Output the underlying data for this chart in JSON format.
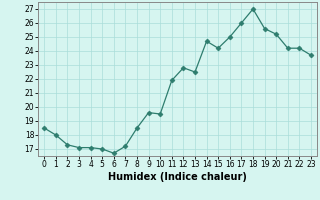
{
  "x": [
    0,
    1,
    2,
    3,
    4,
    5,
    6,
    7,
    8,
    9,
    10,
    11,
    12,
    13,
    14,
    15,
    16,
    17,
    18,
    19,
    20,
    21,
    22,
    23
  ],
  "y": [
    18.5,
    18.0,
    17.3,
    17.1,
    17.1,
    17.0,
    16.7,
    17.2,
    18.5,
    19.6,
    19.5,
    21.9,
    22.8,
    22.5,
    24.7,
    24.2,
    25.0,
    26.0,
    27.0,
    25.6,
    25.2,
    24.2,
    24.2,
    23.7
  ],
  "line_color": "#2e7d6e",
  "marker": "D",
  "marker_size": 2.5,
  "bg_color": "#d6f5f0",
  "grid_color": "#aaddda",
  "xlabel": "Humidex (Indice chaleur)",
  "xlim": [
    -0.5,
    23.5
  ],
  "ylim": [
    16.5,
    27.5
  ],
  "yticks": [
    17,
    18,
    19,
    20,
    21,
    22,
    23,
    24,
    25,
    26,
    27
  ],
  "xticks": [
    0,
    1,
    2,
    3,
    4,
    5,
    6,
    7,
    8,
    9,
    10,
    11,
    12,
    13,
    14,
    15,
    16,
    17,
    18,
    19,
    20,
    21,
    22,
    23
  ],
  "tick_fontsize": 5.5,
  "xlabel_fontsize": 7
}
